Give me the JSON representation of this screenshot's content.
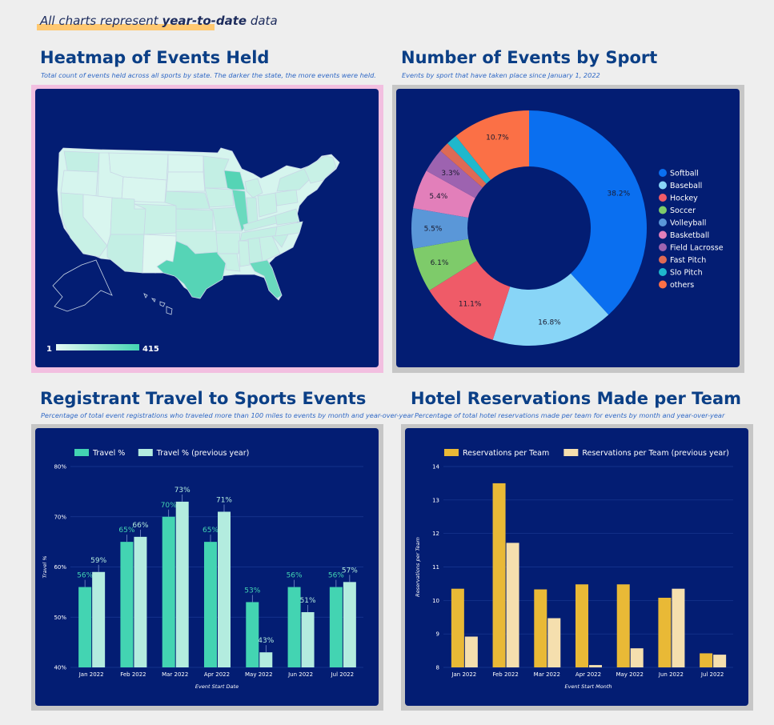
{
  "banner": {
    "prefix": "All charts represent ",
    "emphasis": "year-to-date",
    "suffix": " data"
  },
  "colors": {
    "panel": "#031d73",
    "title": "#0b3f86",
    "subtitle": "#2f68c5",
    "teal": "#43d4b2",
    "teal_light": "#b3ecdf",
    "gold": "#e9b936",
    "cream": "#f5dfae"
  },
  "heatmap": {
    "title": "Heatmap of Events Held",
    "subtitle": "Total count of events held across all sports by state. The darker the state, the more events were held.",
    "legend_min": "1",
    "legend_max": "415"
  },
  "donut": {
    "title": "Number of Events by Sport",
    "subtitle": "Events by sport that have taken place since January 1, 2022"
  },
  "travel": {
    "title": "Registrant Travel to Sports Events",
    "subtitle": "Percentage of total event registrations who traveled more than 100 miles to events by month and year-over-year"
  },
  "hotel": {
    "title": "Hotel Reservations Made per Team",
    "subtitle": "Percentage of total hotel reservations made per team for events by month and year-over-year"
  },
  "chart_data": [
    {
      "type": "pie",
      "categories": [
        "Softball",
        "Baseball",
        "Hockey",
        "Soccer",
        "Volleyball",
        "Basketball",
        "Field Lacrosse",
        "Fast Pitch",
        "Slo Pitch",
        "others"
      ],
      "values": [
        38.2,
        16.8,
        11.1,
        6.1,
        5.5,
        5.4,
        3.3,
        1.4,
        1.5,
        10.7
      ],
      "labels": [
        "38.2%",
        "16.8%",
        "11.1%",
        "6.1%",
        "5.5%",
        "5.4%",
        "3.3%",
        "",
        "",
        "10.7%"
      ],
      "colors": [
        "#0a6ff0",
        "#88d5f7",
        "#ef5b68",
        "#7ecb6a",
        "#5a97d8",
        "#e27fba",
        "#9d63b0",
        "#de6a55",
        "#1fb8cc",
        "#fb7046"
      ],
      "legend": "right"
    },
    {
      "type": "bar",
      "categories": [
        "Jan 2022",
        "Feb 2022",
        "Mar 2022",
        "Apr 2022",
        "May 2022",
        "Jun 2022",
        "Jul 2022"
      ],
      "series": [
        {
          "name": "Travel %",
          "values": [
            56,
            65,
            70,
            65,
            53,
            56,
            56
          ],
          "labels": [
            "56%",
            "65%",
            "70%",
            "65%",
            "53%",
            "56%",
            "56%"
          ]
        },
        {
          "name": "Travel % (previous year)",
          "values": [
            59,
            66,
            73,
            71,
            43,
            51,
            57
          ],
          "labels": [
            "59%",
            "66%",
            "73%",
            "71%",
            "43%",
            "51%",
            "57%"
          ]
        }
      ],
      "xlabel": "Event Start Date",
      "ylabel": "Travel %",
      "ylim": [
        40,
        80
      ],
      "yticks": [
        "40%",
        "50%",
        "60%",
        "70%",
        "80%"
      ],
      "legend": "top-left"
    },
    {
      "type": "bar",
      "categories": [
        "Jan 2022",
        "Feb 2022",
        "Mar 2022",
        "Apr 2022",
        "May 2022",
        "Jun 2022",
        "Jul 2022"
      ],
      "series": [
        {
          "name": "Reservations per Team",
          "values": [
            10.35,
            13.5,
            10.33,
            10.48,
            10.48,
            10.08,
            8.42
          ]
        },
        {
          "name": "Reservations per Team (previous year)",
          "values": [
            8.92,
            11.72,
            9.47,
            8.07,
            8.57,
            10.35,
            8.38
          ]
        }
      ],
      "xlabel": "Event Start Month",
      "ylabel": "Reservations per Team",
      "ylim": [
        8,
        14
      ],
      "yticks": [
        "8",
        "9",
        "10",
        "11",
        "12",
        "13",
        "14"
      ],
      "legend": "top-left"
    }
  ]
}
